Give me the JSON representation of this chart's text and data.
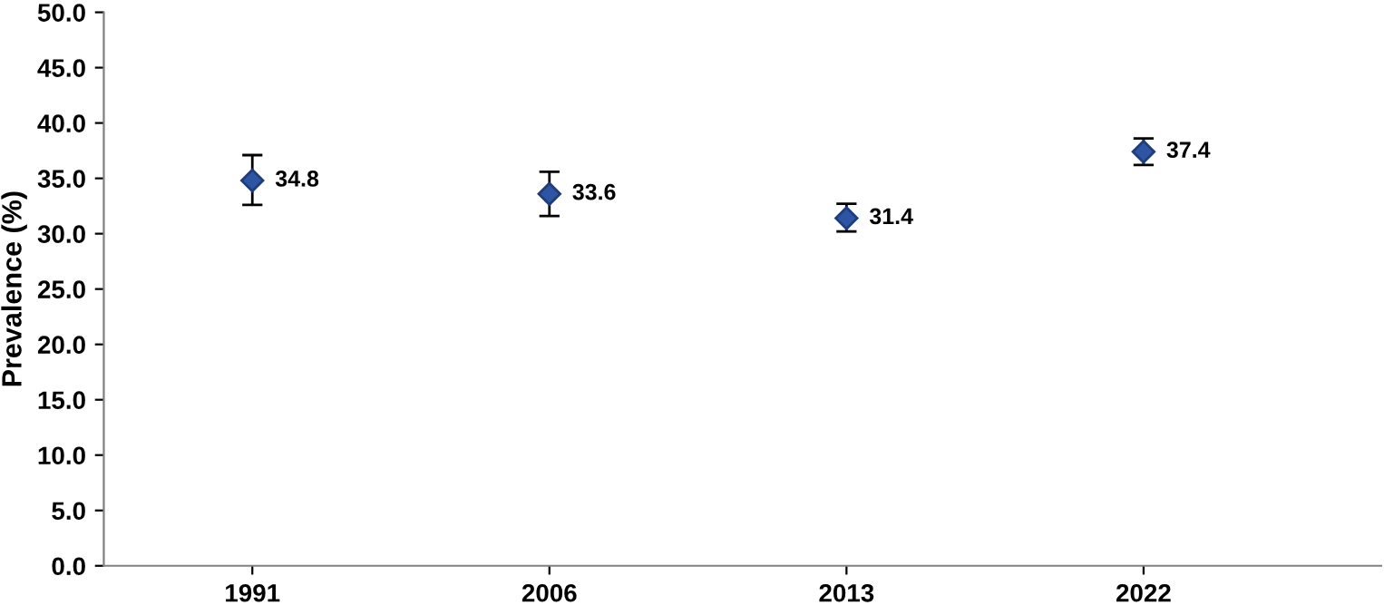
{
  "chart_data": {
    "type": "scatter",
    "ylabel": "Prevalence (%)",
    "categories": [
      "1991",
      "2006",
      "2013",
      "2022"
    ],
    "series": [
      {
        "color": "#2e55a4",
        "values": [
          34.8,
          33.6,
          31.4,
          37.4
        ],
        "errors": [
          [
            32.6,
            37.1
          ],
          [
            31.6,
            35.6
          ],
          [
            30.2,
            32.7
          ],
          [
            36.2,
            38.6
          ]
        ]
      }
    ],
    "data_labels": true,
    "marker": "diamond",
    "ylim": [
      0,
      50
    ],
    "yticks": [
      {
        "value": 0,
        "label": "0.0"
      },
      {
        "value": 5,
        "label": "5.0"
      },
      {
        "value": 10,
        "label": "10.0"
      },
      {
        "value": 15,
        "label": "15.0"
      },
      {
        "value": 20,
        "label": "20.0"
      },
      {
        "value": 25,
        "label": "25.0"
      },
      {
        "value": 30,
        "label": "30.0"
      },
      {
        "value": 35,
        "label": "35.0"
      },
      {
        "value": 40,
        "label": "40.0"
      },
      {
        "value": 45,
        "label": "45.0"
      },
      {
        "value": 50,
        "label": "50.0"
      }
    ]
  }
}
